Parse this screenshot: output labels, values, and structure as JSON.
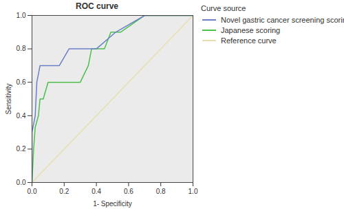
{
  "chart_data": {
    "type": "line",
    "title": "ROC curve",
    "x_label": "1- Specificity",
    "y_label": "Sensitivity",
    "legend_title": "Curve source",
    "legend": "right",
    "grid": false,
    "xlim": [
      0,
      1
    ],
    "ylim": [
      0,
      1
    ],
    "xticks": [
      {
        "value": 0,
        "label": "0.0"
      },
      0.2,
      0.4,
      0.6,
      0.8,
      {
        "value": 1,
        "label": "1.0"
      }
    ],
    "yticks": [
      {
        "value": 0,
        "label": "0.0"
      },
      0.2,
      0.4,
      0.6,
      0.8,
      {
        "value": 1,
        "label": "1.0"
      }
    ],
    "series": [
      {
        "name": "Novel gastric cancer screening scoring",
        "color": "#6b7fc8",
        "x": [
          0,
          0,
          0.02,
          0.03,
          0.05,
          0.13,
          0.17,
          0.23,
          0.4,
          0.52,
          0.7,
          1
        ],
        "values": [
          0,
          0.3,
          0.4,
          0.6,
          0.7,
          0.7,
          0.7,
          0.8,
          0.8,
          0.9,
          1.0,
          1.0
        ]
      },
      {
        "name": "Japanese scoring",
        "color": "#4cbf4c",
        "x": [
          0,
          0.01,
          0.02,
          0.04,
          0.05,
          0.07,
          0.1,
          0.3,
          0.35,
          0.37,
          0.45,
          0.49,
          0.55,
          0.7,
          1
        ],
        "values": [
          0,
          0.2,
          0.33,
          0.4,
          0.5,
          0.5,
          0.6,
          0.6,
          0.7,
          0.8,
          0.8,
          0.9,
          0.9,
          1.0,
          1.0
        ]
      },
      {
        "name": "Reference curve",
        "color": "#e6dfae",
        "x": [
          0,
          1
        ],
        "values": [
          0,
          1
        ]
      }
    ]
  }
}
